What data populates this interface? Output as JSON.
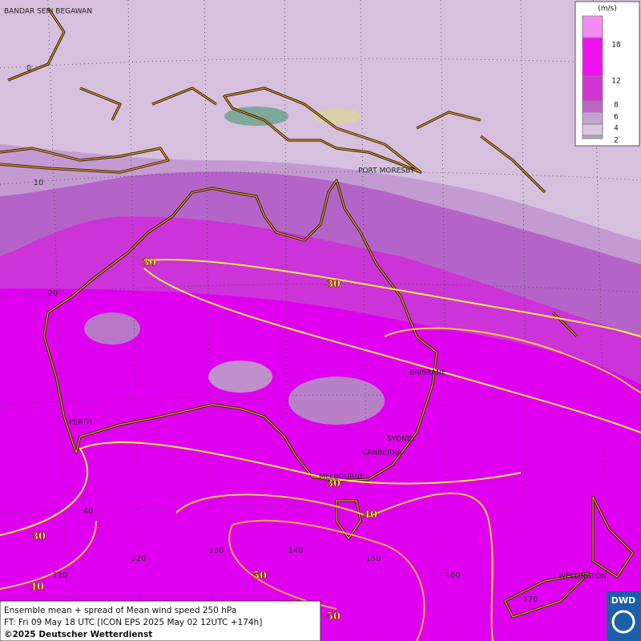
{
  "map": {
    "cities": [
      "BANDAR SERI BEGAWAN",
      "PORT MORESBY",
      "BRISBANE",
      "PERTH",
      "SYDNEY",
      "CANBERRA",
      "MELBOURNE",
      "WELLINGTON"
    ],
    "latitude_labels": [
      "0",
      "10",
      "20",
      "40"
    ],
    "longitude_labels": [
      "110",
      "120",
      "130",
      "140",
      "150",
      "160",
      "170"
    ],
    "contour_labels": [
      "30",
      "30",
      "30",
      "40",
      "30",
      "40",
      "50",
      "50"
    ]
  },
  "legend": {
    "unit": "(m/s)",
    "labels": [
      "18",
      "12",
      "8",
      "6",
      "4",
      "2"
    ]
  },
  "footer": {
    "lines": [
      "Ensemble mean + spread of Mean wind speed 250 hPa",
      "FT: Fri 09 May 18 UTC [ICON EPS 2025 May 02 12UTC +174h]",
      "©2025 Deutscher Wetterdienst"
    ]
  },
  "logo": "DWD"
}
